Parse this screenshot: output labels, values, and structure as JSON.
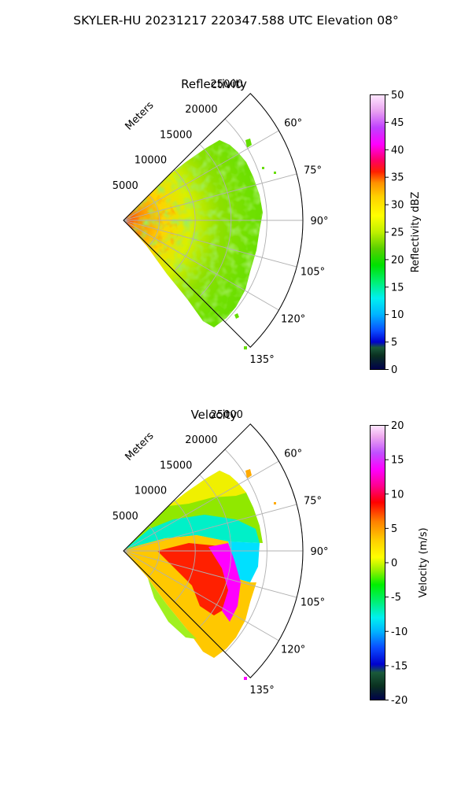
{
  "suptitle": "SKYLER-HU  20231217  220347.588 UTC Elevation 08°",
  "chart_data": [
    {
      "type": "heatmap",
      "projection": "polar-sector",
      "title": "Reflectivity",
      "radial_label": "Meters",
      "r_ticks": [
        5000,
        10000,
        15000,
        20000,
        25000
      ],
      "r_max": 25000,
      "theta_ticks": [
        "60°",
        "75°",
        "90°",
        "105°",
        "120°",
        "135°"
      ],
      "theta_tick_values": [
        60,
        75,
        90,
        105,
        120,
        135
      ],
      "theta_range": [
        45,
        135
      ],
      "grid": true,
      "colorbar": {
        "label": "Reflectivity dBZ",
        "range": [
          0,
          50
        ],
        "ticks": [
          "0",
          "5",
          "10",
          "15",
          "20",
          "25",
          "30",
          "35",
          "40",
          "45",
          "50"
        ]
      },
      "data_summary": "Echoes fill the sector out to roughly 21000 m near the centre azimuths; values mostly 15-30 dBZ (green-yellow), with 30-38 dBZ (orange-red) near the radar within about 4000 m and in scattered patches around 105-125°."
    },
    {
      "type": "heatmap",
      "projection": "polar-sector",
      "title": "Velocity",
      "radial_label": "Meters",
      "r_ticks": [
        5000,
        10000,
        15000,
        20000,
        25000
      ],
      "r_max": 25000,
      "theta_ticks": [
        "60°",
        "75°",
        "90°",
        "105°",
        "120°",
        "135°"
      ],
      "theta_tick_values": [
        60,
        75,
        90,
        105,
        120,
        135
      ],
      "theta_range": [
        45,
        135
      ],
      "grid": true,
      "colorbar": {
        "label": "Velocity (m/s)",
        "range": [
          -20,
          20
        ],
        "ticks": [
          "-20",
          "-15",
          "-10",
          "-5",
          "0",
          "5",
          "10",
          "15",
          "20"
        ]
      },
      "data_summary": "Azimuths north of about 90° show mostly -12 to 0 m/s (cyan-green-yellow); a sharp boundary near 90° separates them from 0 to +18 m/s (yellow-orange-red-magenta) at 90-130°, with peak outbound speeds beyond 10000 m around 95-110°."
    }
  ]
}
